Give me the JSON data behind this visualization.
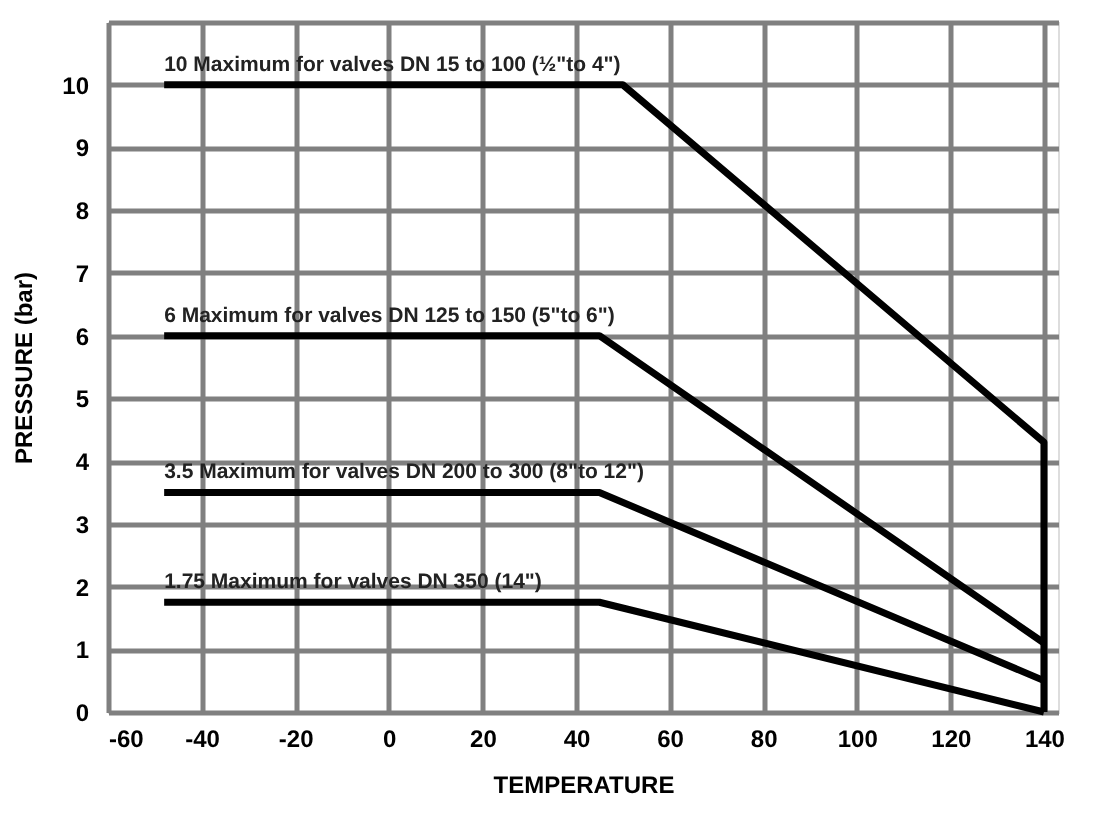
{
  "chart_data": {
    "type": "line",
    "xlabel": "TEMPERATURE",
    "ylabel": "PRESSURE (bar)",
    "xlim": [
      -60,
      143
    ],
    "xticks": [
      -60,
      -40,
      -20,
      0,
      20,
      40,
      60,
      80,
      100,
      120,
      140
    ],
    "ylim": [
      0,
      11
    ],
    "yticks": [
      0,
      1,
      2,
      3,
      4,
      5,
      6,
      7,
      8,
      9,
      10,
      {
        "value": 11,
        "label": null
      }
    ],
    "grid": true,
    "legend": false,
    "marker": "none",
    "line_style": "solid",
    "series": [
      {
        "color": "#000000",
        "x": [
          -48,
          50,
          140,
          140
        ],
        "values": [
          10,
          10,
          4.3,
          0
        ]
      },
      {
        "color": "#000000",
        "x": [
          -48,
          45,
          140
        ],
        "values": [
          6,
          6,
          1.1
        ]
      },
      {
        "color": "#000000",
        "x": [
          -48,
          45,
          140
        ],
        "values": [
          3.5,
          3.5,
          0.5
        ]
      },
      {
        "color": "#000000",
        "x": [
          -48,
          45,
          140
        ],
        "values": [
          1.75,
          1.75,
          0
        ]
      }
    ],
    "annotations": [
      {
        "text": "10 Maximum for valves DN 15 to 100 (½\"to 4\")",
        "y": 10
      },
      {
        "text": "6 Maximum for valves DN 125 to 150 (5\"to 6\")",
        "y": 6
      },
      {
        "text": "3.5 Maximum for valves DN 200 to 300 (8\"to 12\")",
        "y": 3.5
      },
      {
        "text": "1.75 Maximum for valves DN 350 (14\")",
        "y": 1.75
      }
    ]
  }
}
